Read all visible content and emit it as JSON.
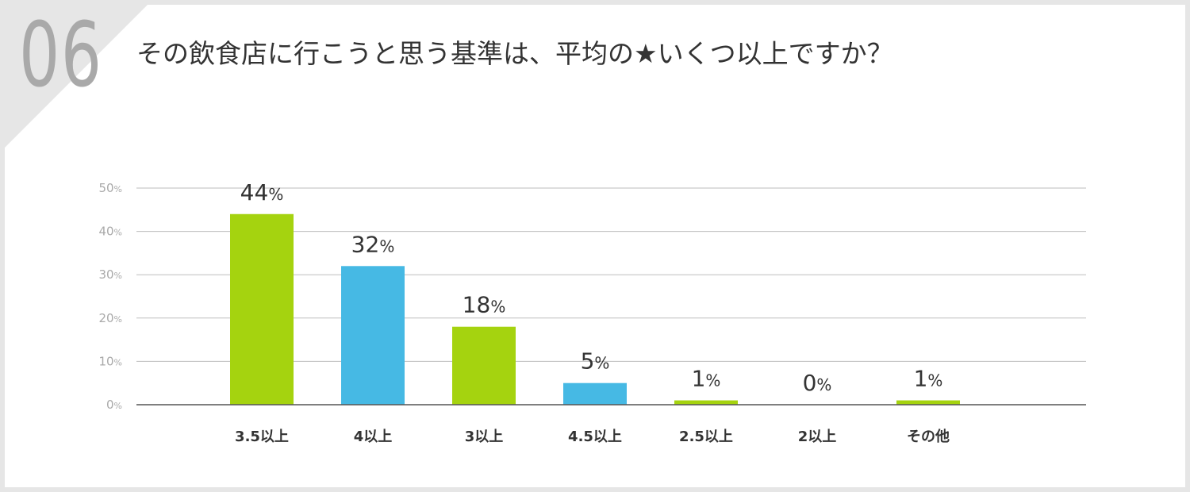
{
  "question_number": "06",
  "title": "その飲食店に行こうと思う基準は、平均の★いくつ以上ですか？",
  "colors": {
    "green": "#a5d30f",
    "blue": "#46b9e4",
    "grid": "#bdbdbd",
    "axis": "#555555",
    "tick": "#aaaaaa",
    "text": "#333333"
  },
  "chart_data": {
    "type": "bar",
    "title": "その飲食店に行こうと思う基準は、平均の★いくつ以上ですか？",
    "categories": [
      "3.5以上",
      "4以上",
      "3以上",
      "4.5以上",
      "2.5以上",
      "2以上",
      "その他"
    ],
    "values": [
      44,
      32,
      18,
      5,
      1,
      0,
      1
    ],
    "value_labels": [
      "44%",
      "32%",
      "18%",
      "5%",
      "1%",
      "0%",
      "1%"
    ],
    "bar_colors": [
      "#a5d30f",
      "#46b9e4",
      "#a5d30f",
      "#46b9e4",
      "#a5d30f",
      "#a5d30f",
      "#a5d30f"
    ],
    "y_ticks": [
      0,
      10,
      20,
      30,
      40,
      50
    ],
    "y_tick_labels": [
      "0%",
      "10%",
      "20%",
      "30%",
      "40%",
      "50%"
    ],
    "ylim": [
      0,
      50
    ],
    "grid": true,
    "xlabel": "",
    "ylabel": ""
  }
}
